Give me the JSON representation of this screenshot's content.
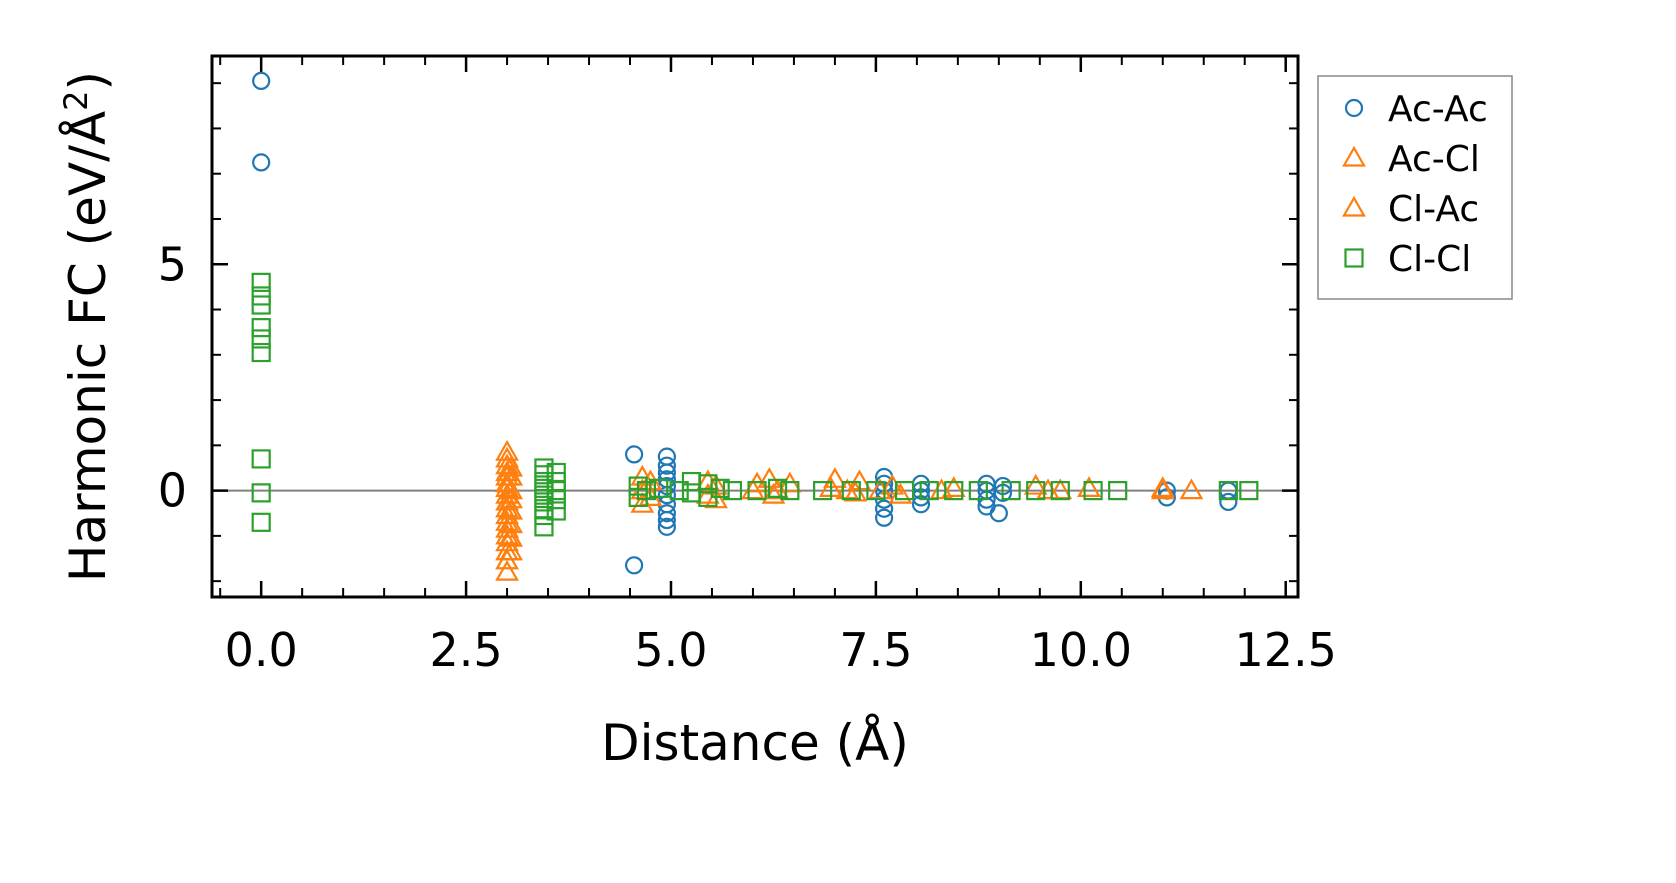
{
  "chart_data": {
    "type": "scatter",
    "xlabel": "Distance (Å)",
    "ylabel_main": "Harmonic FC (eV/Å",
    "ylabel_sup": "2",
    "ylabel_close": ")",
    "xlim": [
      -0.6,
      12.65
    ],
    "ylim": [
      -2.35,
      9.6
    ],
    "x_ticks": [
      {
        "value": 0.0,
        "label": "0.0"
      },
      {
        "value": 2.5,
        "label": "2.5"
      },
      {
        "value": 5.0,
        "label": "5.0"
      },
      {
        "value": 7.5,
        "label": "7.5"
      },
      {
        "value": 10.0,
        "label": "10.0"
      },
      {
        "value": 12.5,
        "label": "12.5"
      }
    ],
    "y_ticks": [
      {
        "value": 0,
        "label": "0"
      },
      {
        "value": 5,
        "label": "5"
      }
    ],
    "x_minor_step": 0.5,
    "y_minor_step": 1,
    "zero_line": 0,
    "legend_position": "outside-right-top",
    "series": [
      {
        "name": "Ac-Ac",
        "marker": "circle",
        "color": "#1f77b4",
        "points": [
          [
            0,
            9.05
          ],
          [
            0,
            7.25
          ],
          [
            4.55,
            0.8
          ],
          [
            4.55,
            -1.65
          ],
          [
            4.95,
            0.75
          ],
          [
            4.95,
            0.55
          ],
          [
            4.95,
            0.4
          ],
          [
            4.95,
            0.25
          ],
          [
            4.95,
            0.1
          ],
          [
            4.95,
            -0.1
          ],
          [
            4.95,
            -0.3
          ],
          [
            4.95,
            -0.5
          ],
          [
            4.95,
            -0.65
          ],
          [
            4.95,
            -0.8
          ],
          [
            7.6,
            0.3
          ],
          [
            7.6,
            0.15
          ],
          [
            7.6,
            0.0
          ],
          [
            7.6,
            -0.2
          ],
          [
            7.6,
            -0.4
          ],
          [
            7.6,
            -0.6
          ],
          [
            8.05,
            0.15
          ],
          [
            8.05,
            0.0
          ],
          [
            8.05,
            -0.15
          ],
          [
            8.05,
            -0.3
          ],
          [
            8.85,
            0.15
          ],
          [
            8.85,
            0.0
          ],
          [
            8.85,
            -0.2
          ],
          [
            8.85,
            -0.35
          ],
          [
            9.05,
            0.1
          ],
          [
            9.05,
            -0.05
          ],
          [
            9.0,
            -0.5
          ],
          [
            11.05,
            0.0
          ],
          [
            11.05,
            -0.15
          ],
          [
            11.8,
            0.0
          ],
          [
            11.8,
            -0.25
          ]
        ]
      },
      {
        "name": "Ac-Cl",
        "marker": "triangle",
        "color": "#ff7f0e",
        "points": [
          [
            3.0,
            0.85
          ],
          [
            3.0,
            0.7
          ],
          [
            3.0,
            0.55
          ],
          [
            3.0,
            0.4
          ],
          [
            3.0,
            0.3
          ],
          [
            3.0,
            0.15
          ],
          [
            3.0,
            0.05
          ],
          [
            3.0,
            -0.1
          ],
          [
            3.0,
            -0.25
          ],
          [
            3.0,
            -0.4
          ],
          [
            3.0,
            -0.55
          ],
          [
            3.0,
            -0.7
          ],
          [
            3.0,
            -0.85
          ],
          [
            3.0,
            -1.0
          ],
          [
            3.0,
            -1.15
          ],
          [
            3.0,
            -1.35
          ],
          [
            3.0,
            -1.55
          ],
          [
            3.0,
            -1.8
          ],
          [
            4.65,
            0.3
          ],
          [
            4.65,
            0.0
          ],
          [
            4.65,
            -0.3
          ],
          [
            5.45,
            0.2
          ],
          [
            5.45,
            -0.1
          ],
          [
            6.0,
            0.0
          ],
          [
            6.2,
            0.25
          ],
          [
            6.3,
            0.0
          ],
          [
            6.45,
            0.15
          ],
          [
            7.0,
            0.25
          ],
          [
            7.15,
            0.0
          ],
          [
            7.3,
            0.2
          ],
          [
            7.7,
            0.1
          ],
          [
            7.8,
            -0.1
          ],
          [
            8.3,
            0.0
          ],
          [
            9.45,
            0.1
          ],
          [
            9.75,
            0.0
          ],
          [
            10.1,
            0.05
          ],
          [
            11.0,
            0.05
          ],
          [
            11.35,
            0.0
          ]
        ]
      },
      {
        "name": "Cl-Ac",
        "marker": "triangle",
        "color": "#ff7f0e",
        "points": [
          [
            3.05,
            0.5
          ],
          [
            3.05,
            0.3
          ],
          [
            3.05,
            0.0
          ],
          [
            3.05,
            -0.2
          ],
          [
            3.05,
            -0.45
          ],
          [
            3.05,
            -0.75
          ],
          [
            3.05,
            -1.05
          ],
          [
            3.05,
            -1.35
          ],
          [
            4.75,
            0.2
          ],
          [
            4.75,
            -0.15
          ],
          [
            5.55,
            0.1
          ],
          [
            5.55,
            -0.2
          ],
          [
            6.05,
            0.15
          ],
          [
            6.25,
            -0.1
          ],
          [
            6.95,
            0.05
          ],
          [
            7.25,
            -0.05
          ],
          [
            7.55,
            0.0
          ],
          [
            8.45,
            0.05
          ],
          [
            9.6,
            0.0
          ],
          [
            11.0,
            0.0
          ]
        ]
      },
      {
        "name": "Cl-Cl",
        "marker": "square",
        "color": "#2ca02c",
        "points": [
          [
            0,
            4.6
          ],
          [
            0,
            4.3
          ],
          [
            0,
            4.1
          ],
          [
            0,
            3.6
          ],
          [
            0,
            3.35
          ],
          [
            0,
            3.05
          ],
          [
            0,
            0.7
          ],
          [
            0,
            -0.05
          ],
          [
            0,
            -0.7
          ],
          [
            3.45,
            0.5
          ],
          [
            3.45,
            0.35
          ],
          [
            3.45,
            0.2
          ],
          [
            3.45,
            0.05
          ],
          [
            3.45,
            -0.1
          ],
          [
            3.45,
            -0.25
          ],
          [
            3.45,
            -0.4
          ],
          [
            3.45,
            -0.55
          ],
          [
            3.45,
            -0.8
          ],
          [
            3.6,
            0.4
          ],
          [
            3.6,
            0.2
          ],
          [
            3.6,
            0.0
          ],
          [
            3.6,
            -0.2
          ],
          [
            3.6,
            -0.45
          ],
          [
            4.6,
            0.1
          ],
          [
            4.6,
            -0.15
          ],
          [
            4.7,
            0.0
          ],
          [
            4.85,
            0.05
          ],
          [
            5.1,
            0.0
          ],
          [
            5.25,
            0.2
          ],
          [
            5.25,
            -0.05
          ],
          [
            5.45,
            0.15
          ],
          [
            5.45,
            -0.15
          ],
          [
            5.6,
            0.05
          ],
          [
            5.75,
            0.0
          ],
          [
            6.05,
            0.0
          ],
          [
            6.3,
            0.05
          ],
          [
            6.45,
            0.0
          ],
          [
            6.85,
            0.0
          ],
          [
            7.2,
            0.0
          ],
          [
            7.5,
            0.0
          ],
          [
            7.85,
            0.0
          ],
          [
            8.15,
            0.0
          ],
          [
            8.45,
            0.0
          ],
          [
            8.75,
            0.0
          ],
          [
            9.15,
            0.0
          ],
          [
            9.45,
            0.0
          ],
          [
            9.75,
            0.0
          ],
          [
            10.15,
            0.0
          ],
          [
            10.45,
            0.0
          ],
          [
            11.8,
            0.0
          ],
          [
            12.05,
            0.0
          ]
        ]
      }
    ]
  }
}
